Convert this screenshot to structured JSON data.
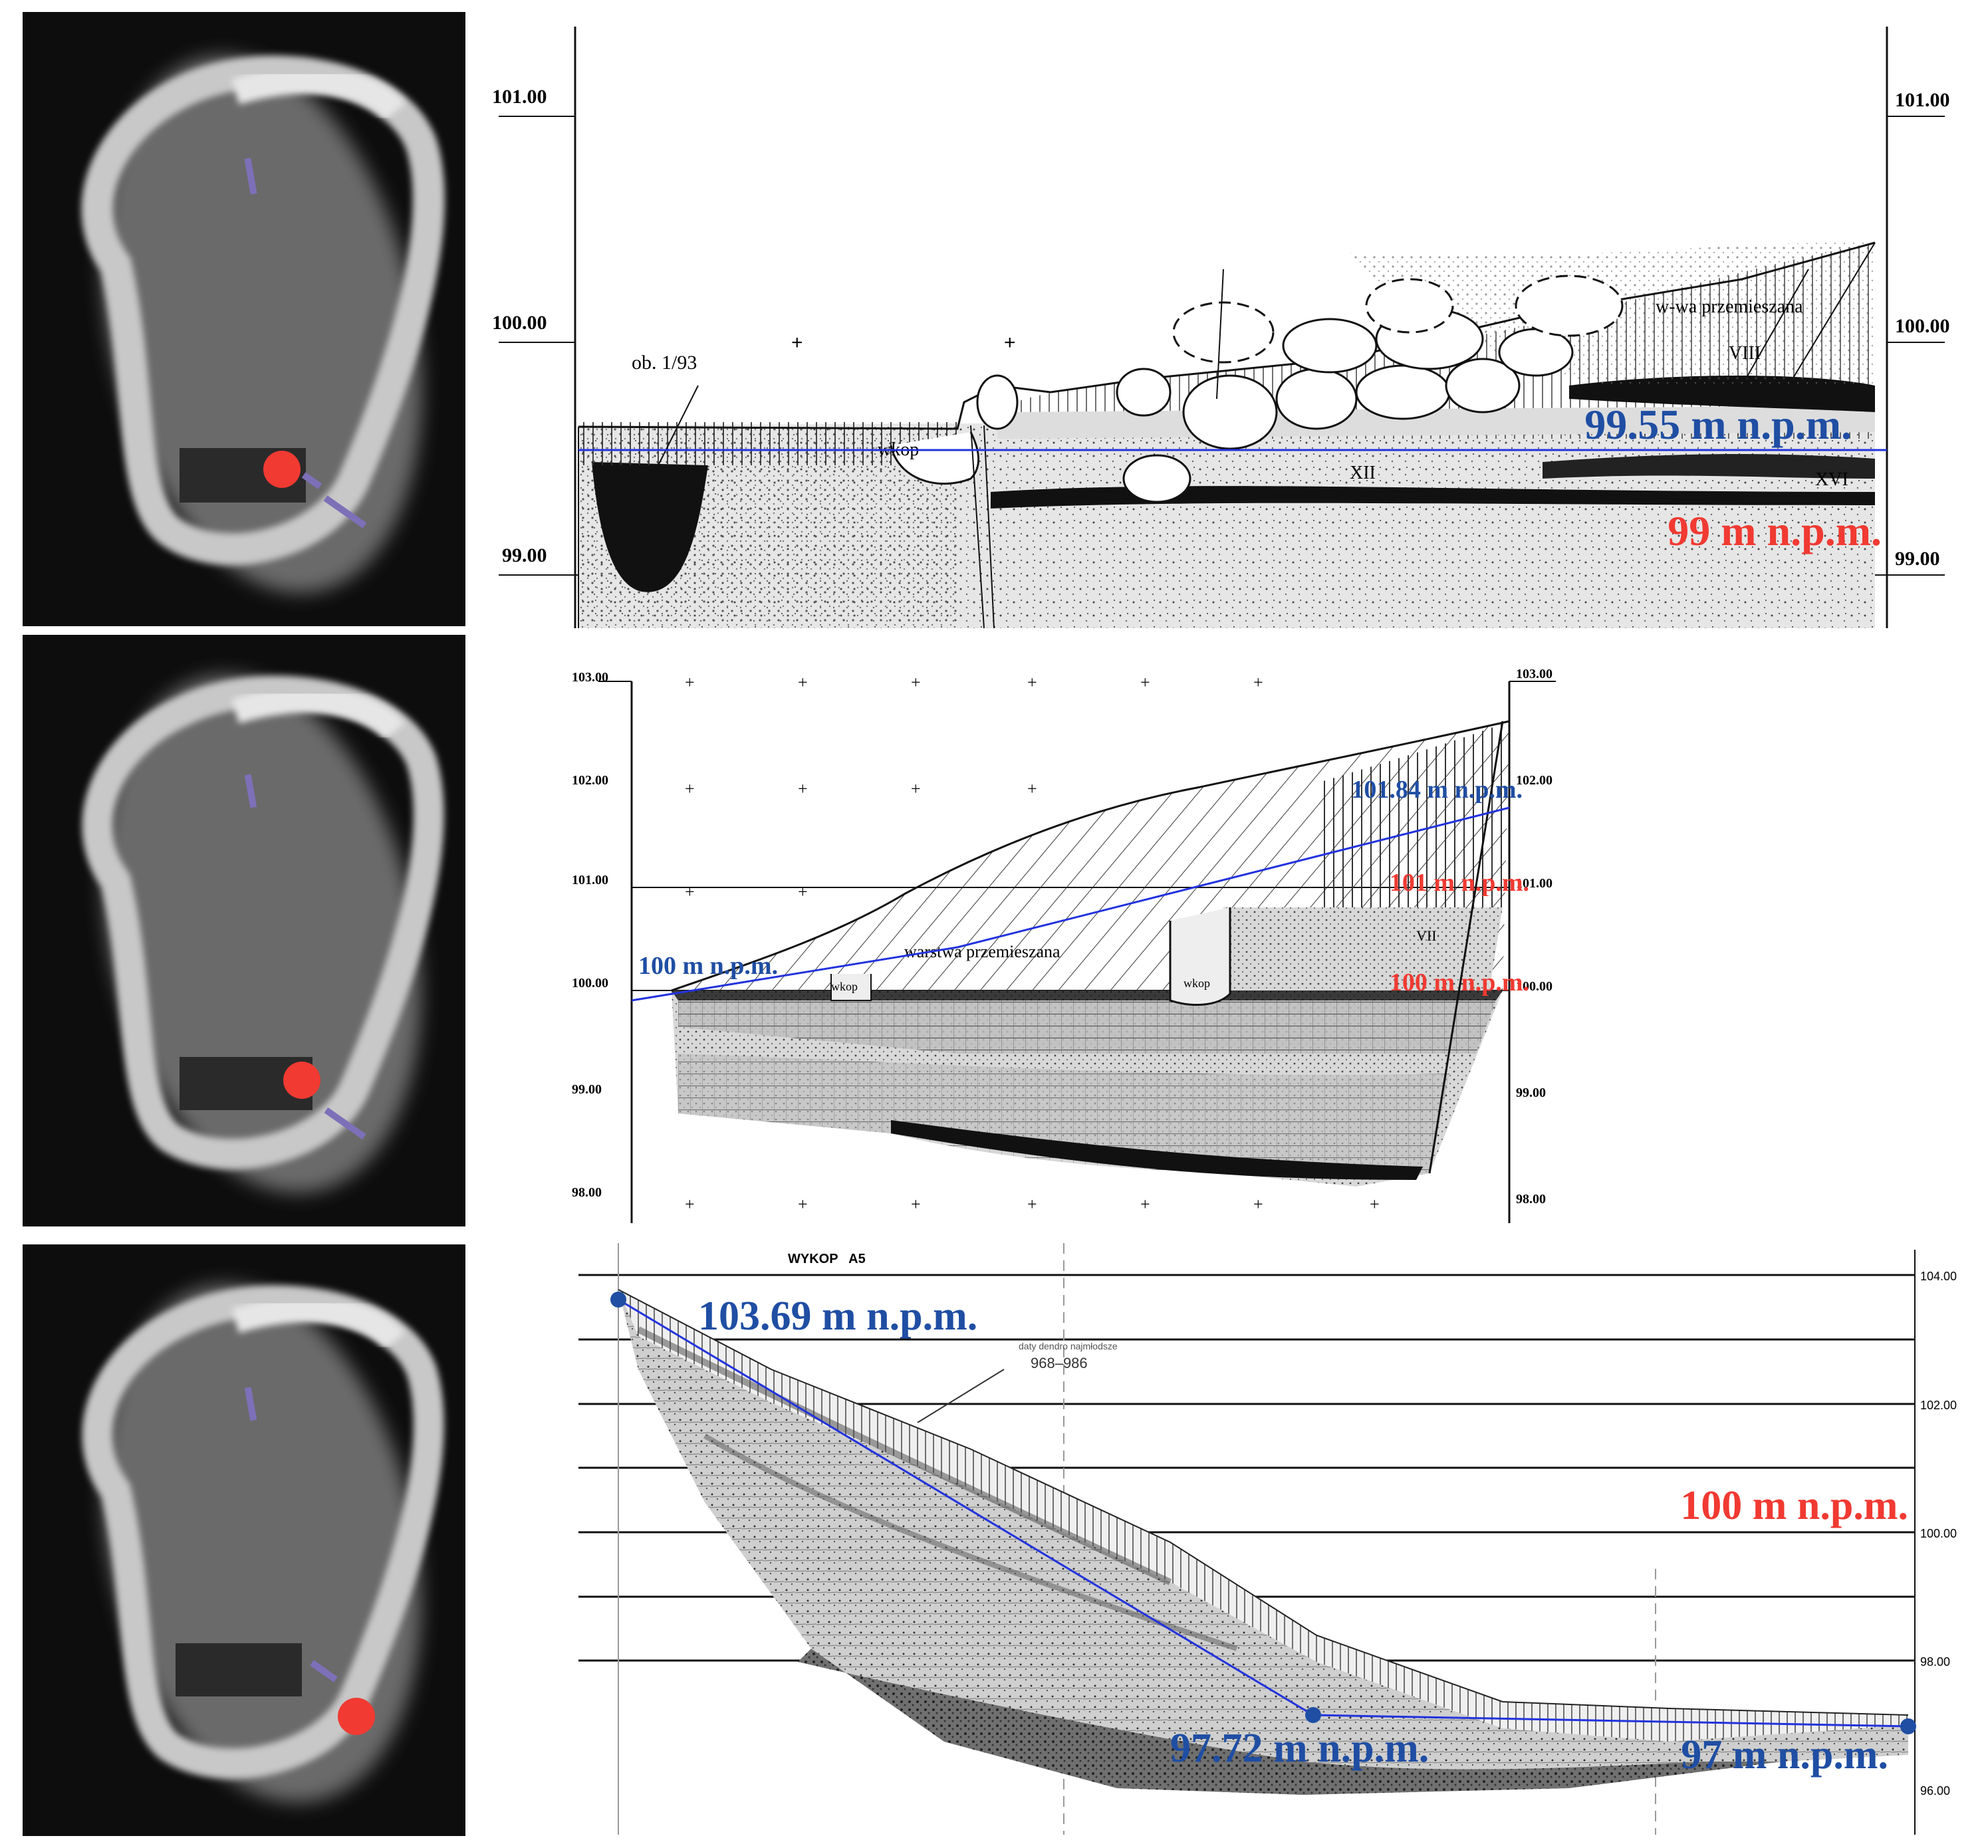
{
  "panel1": {
    "axis_left": [
      "101.00",
      "100.00",
      "99.00"
    ],
    "axis_right": [
      "101.00",
      "100.00",
      "99.00"
    ],
    "labels": {
      "ob": "ob. 1/93",
      "wkop": "wkop",
      "warstwa": "w-wa przemieszana",
      "viii": "VIII",
      "xii": "XII",
      "xvi": "XVI"
    },
    "annot_blue": "99.55 m n.p.m.",
    "annot_red": "99 m n.p.m."
  },
  "panel2": {
    "axis_left": [
      "103.00",
      "102.00",
      "101.00",
      "100.00",
      "99.00",
      "98.00"
    ],
    "axis_right": [
      "103.00",
      "102.00",
      "101.00",
      "100.00",
      "99.00",
      "98.00"
    ],
    "labels": {
      "warstwa": "warstwa przemieszana",
      "wkop1": "wkop",
      "wkop2": "wkop",
      "vii": "VII"
    },
    "annot_blue_top": "101.84 m n.p.m.",
    "annot_blue_left": "100 m n.p.m.",
    "annot_red_1": "101 m n.p.m.",
    "annot_red_2": "100 m n.p.m."
  },
  "panel3": {
    "title": "WYKOP   A5",
    "axis_right": [
      "104.00",
      "102.00",
      "100.00",
      "98.00",
      "96.00"
    ],
    "dendro_caption": "daty dendro najmłodsze",
    "dendro_range": "968–986",
    "annot_blue_1": "103.69 m n.p.m.",
    "annot_blue_2": "97.72 m n.p.m.",
    "annot_blue_3": "97 m n.p.m.",
    "annot_red": "100 m n.p.m."
  },
  "colors": {
    "blue": "#1f4ea3",
    "red": "#f03a32",
    "line_blue": "#2233dd",
    "marker": "#7d70b8"
  }
}
